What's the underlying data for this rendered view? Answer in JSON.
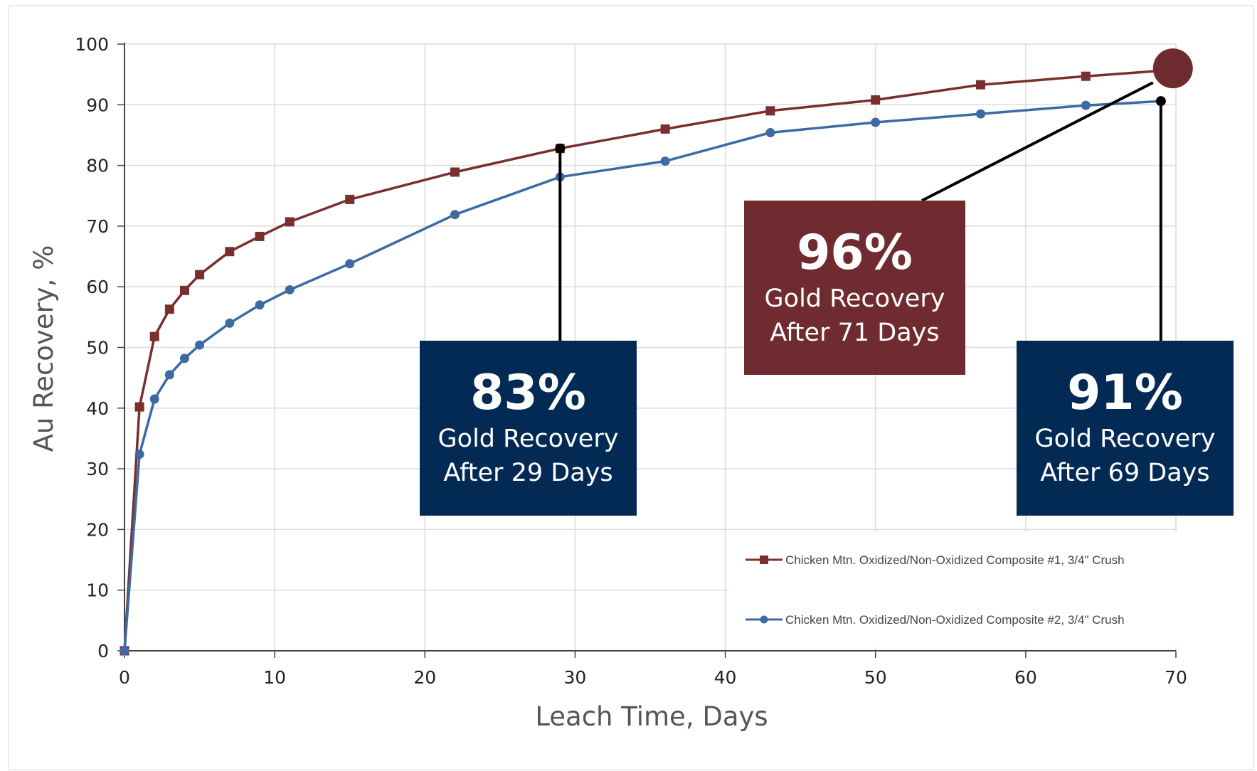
{
  "chart_data": {
    "type": "line",
    "title": "",
    "xlabel": "Leach Time, Days",
    "ylabel": "Au Recovery, %",
    "xlim": [
      0,
      70
    ],
    "ylim": [
      0,
      100
    ],
    "x_ticks": [
      0,
      10,
      20,
      30,
      40,
      50,
      60,
      70
    ],
    "y_ticks": [
      0,
      10,
      20,
      30,
      40,
      50,
      60,
      70,
      80,
      90,
      100
    ],
    "grid": true,
    "legend_position": "bottom-right",
    "series": [
      {
        "name": "Chicken Mtn. Oxidized/Non-Oxidized Composite #1, 3/4\" Crush",
        "color": "#7a2e2e",
        "marker": "square",
        "x": [
          0,
          1,
          2,
          3,
          4,
          5,
          7,
          9,
          11,
          15,
          22,
          29,
          36,
          43,
          50,
          57,
          64,
          69
        ],
        "y": [
          0,
          40.2,
          51.8,
          56.3,
          59.4,
          62.0,
          65.8,
          68.3,
          70.7,
          74.4,
          78.9,
          82.8,
          86.0,
          89.0,
          90.8,
          93.3,
          94.7,
          95.6
        ]
      },
      {
        "name": "Chicken Mtn. Oxidized/Non-Oxidized Composite #2, 3/4\" Crush",
        "color": "#3d6aa3",
        "marker": "circle",
        "x": [
          0,
          1,
          2,
          3,
          4,
          5,
          7,
          9,
          11,
          15,
          22,
          29,
          36,
          43,
          50,
          57,
          64,
          69
        ],
        "y": [
          0,
          32.4,
          41.5,
          45.5,
          48.2,
          50.4,
          54.0,
          57.0,
          59.5,
          63.8,
          71.9,
          78.1,
          80.7,
          85.4,
          87.1,
          88.5,
          89.9,
          90.6
        ]
      }
    ],
    "annotations": [
      {
        "value": "83%",
        "line1": "Gold Recovery",
        "line2": "After 29 Days",
        "point_x": 29,
        "point_y": 82.8,
        "color": "#032a55"
      },
      {
        "value": "96%",
        "line1": "Gold Recovery",
        "line2": "After 71 Days",
        "point_x": 69.8,
        "point_y": 96.0,
        "color": "#6f2b2f"
      },
      {
        "value": "91%",
        "line1": "Gold Recovery",
        "line2": "After 69 Days",
        "point_x": 69,
        "point_y": 90.6,
        "color": "#032a55"
      }
    ]
  }
}
